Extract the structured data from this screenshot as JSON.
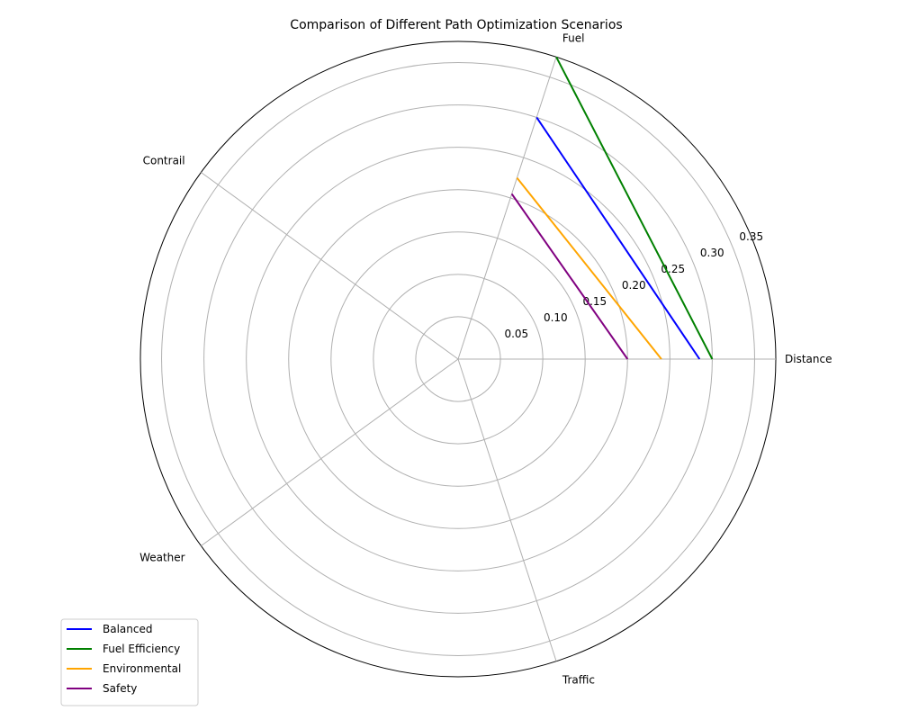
{
  "chart_data": {
    "type": "radar",
    "title": "Comparison of Different Path Optimization Scenarios",
    "axes": [
      "Distance",
      "Fuel",
      "Contrail",
      "Weather",
      "Traffic"
    ],
    "rlim": [
      0,
      0.375
    ],
    "rticks": [
      0.05,
      0.1,
      0.15,
      0.2,
      0.25,
      0.3,
      0.35
    ],
    "rtick_labels": [
      "0.05",
      "0.10",
      "0.15",
      "0.20",
      "0.25",
      "0.30",
      "0.35"
    ],
    "grid": true,
    "legend_position": "lower-left",
    "series": [
      {
        "name": "Balanced",
        "color": "#0000ff",
        "values": [
          0.285,
          0.3,
          0,
          0,
          0
        ]
      },
      {
        "name": "Fuel Efficiency",
        "color": "#008000",
        "values": [
          0.3,
          0.375,
          0,
          0,
          0
        ]
      },
      {
        "name": "Environmental",
        "color": "#ffa500",
        "values": [
          0.24,
          0.225,
          0,
          0,
          0
        ]
      },
      {
        "name": "Safety",
        "color": "#800080",
        "values": [
          0.2,
          0.205,
          0,
          0,
          0
        ]
      }
    ]
  }
}
